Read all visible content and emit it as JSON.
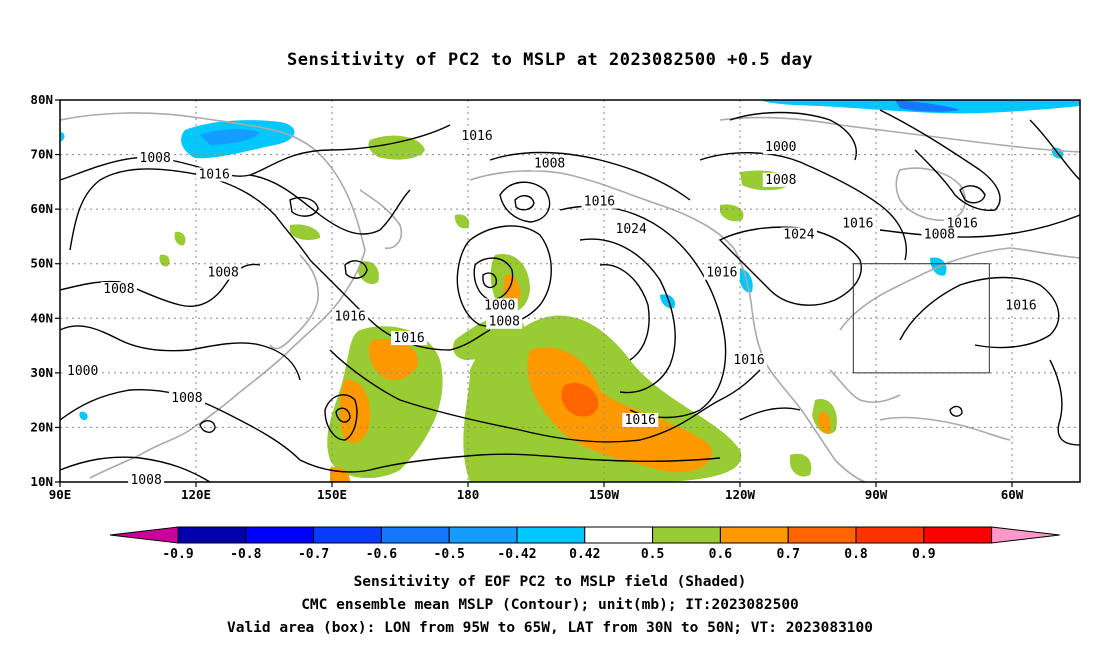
{
  "title": "Sensitivity of PC2 to MSLP at 2023082500 +0.5 day",
  "lat_ticks": [
    "80N",
    "70N",
    "60N",
    "50N",
    "40N",
    "30N",
    "20N",
    "10N"
  ],
  "lon_ticks": [
    "90E",
    "120E",
    "150E",
    "180",
    "150W",
    "120W",
    "90W",
    "60W"
  ],
  "contour_labels": [
    {
      "text": "1016",
      "lon": -178,
      "lat": 73
    },
    {
      "text": "1008",
      "lon": 111,
      "lat": 69
    },
    {
      "text": "1016",
      "lon": 124,
      "lat": 66
    },
    {
      "text": "1008",
      "lon": -162,
      "lat": 68
    },
    {
      "text": "1016",
      "lon": -151,
      "lat": 61
    },
    {
      "text": "1024",
      "lon": -144,
      "lat": 56
    },
    {
      "text": "1000",
      "lon": -111,
      "lat": 71
    },
    {
      "text": "1008",
      "lon": -111,
      "lat": 65
    },
    {
      "text": "1024",
      "lon": -107,
      "lat": 55
    },
    {
      "text": "1016",
      "lon": -94,
      "lat": 57
    },
    {
      "text": "1016",
      "lon": -71,
      "lat": 57
    },
    {
      "text": "1008",
      "lon": -76,
      "lat": 55
    },
    {
      "text": "1016",
      "lon": -58,
      "lat": 42
    },
    {
      "text": "1016",
      "lon": -124,
      "lat": 48
    },
    {
      "text": "1016",
      "lon": -118,
      "lat": 32
    },
    {
      "text": "1016",
      "lon": -142,
      "lat": 21
    },
    {
      "text": "1008",
      "lon": 126,
      "lat": 48
    },
    {
      "text": "1008",
      "lon": 103,
      "lat": 45
    },
    {
      "text": "1016",
      "lon": 154,
      "lat": 40
    },
    {
      "text": "1016",
      "lon": 167,
      "lat": 36
    },
    {
      "text": "1000",
      "lon": -173,
      "lat": 42
    },
    {
      "text": "1008",
      "lon": -172,
      "lat": 39
    },
    {
      "text": "1000",
      "lon": 95,
      "lat": 30
    },
    {
      "text": "1008",
      "lon": 118,
      "lat": 25
    },
    {
      "text": "1008",
      "lon": 109,
      "lat": 10
    }
  ],
  "valid_box": {
    "lon_west": -95,
    "lon_east": -65,
    "lat_south": 30,
    "lat_north": 50
  },
  "colorbar": {
    "labels": [
      "-0.9",
      "-0.8",
      "-0.7",
      "-0.6",
      "-0.5",
      "-0.42",
      "0.42",
      "0.5",
      "0.6",
      "0.7",
      "0.8",
      "0.9"
    ],
    "colors": [
      "#0000aa",
      "#0000ff",
      "#0a3cff",
      "#1478ff",
      "#149cff",
      "#00c8ff",
      "#ffffff",
      "#99cc33",
      "#ff9900",
      "#ff6600",
      "#ff3300",
      "#ff0000"
    ],
    "low_extend_color": "#cc0099",
    "high_extend_color": "#ff99cc"
  },
  "captions": [
    "Sensitivity of EOF PC2 to MSLP field (Shaded)",
    "CMC ensemble mean MSLP (Contour); unit(mb); IT:2023082500",
    "Valid area (box): LON from 95W to 65W, LAT from 30N to 50N; VT: 2023083100"
  ]
}
